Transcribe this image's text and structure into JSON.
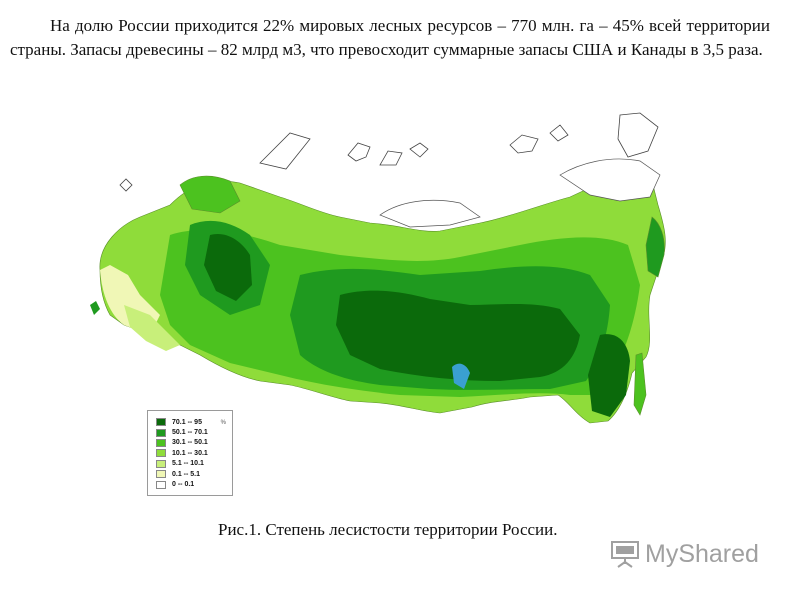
{
  "intro_text": "На долю России приходится 22% мировых лесных ресурсов – 770 млн. га – 45% всей территории страны. Запасы древесины – 82 млрд м3, что превосходит суммарные запасы США и Канады в 3,5 раза.",
  "caption": "Рис.1. Степень лесистости территории России.",
  "legend": {
    "unit": "%",
    "items": [
      {
        "label": "70.1 -- 95",
        "color": "#0b6a0b"
      },
      {
        "label": "50.1 -- 70.1",
        "color": "#1f9a1f"
      },
      {
        "label": "30.1 -- 50.1",
        "color": "#4cc21f"
      },
      {
        "label": "10.1 -- 30.1",
        "color": "#8fdc3a"
      },
      {
        "label": "5.1 -- 10.1",
        "color": "#c8ef7a"
      },
      {
        "label": "0.1 -- 5.1",
        "color": "#f0f7b6"
      },
      {
        "label": "0 -- 0.1",
        "color": "#ffffff"
      }
    ]
  },
  "watermark": {
    "text": "MyShared",
    "icon": "projector-screen-icon"
  }
}
